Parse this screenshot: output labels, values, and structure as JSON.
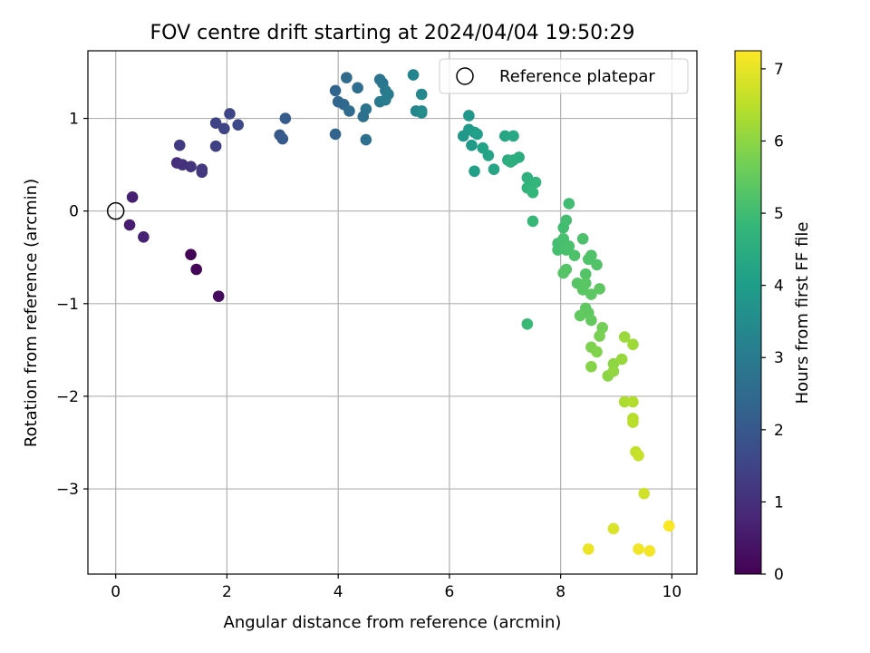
{
  "chart_data": {
    "type": "scatter",
    "title": "FOV centre drift starting at 2024/04/04 19:50:29",
    "xlabel": "Angular distance from reference (arcmin)",
    "ylabel": "Rotation from reference (arcmin)",
    "xlim": [
      -0.5,
      10.45
    ],
    "ylim": [
      -3.92,
      1.73
    ],
    "xticks": [
      0,
      2,
      4,
      6,
      8,
      10
    ],
    "xtick_labels": [
      "0",
      "2",
      "4",
      "6",
      "8",
      "10"
    ],
    "yticks": [
      -3,
      -2,
      -1,
      0,
      1
    ],
    "ytick_labels": [
      "−3",
      "−2",
      "−1",
      "0",
      "1"
    ],
    "grid": true,
    "legend": {
      "placement": "top-right",
      "label": "Reference platepar",
      "marker": "open-circle"
    },
    "reference_point": {
      "x": 0,
      "y": 0
    },
    "colorbar": {
      "label": "Hours from first FF file",
      "colormap": "viridis",
      "range": [
        0,
        7.25
      ],
      "ticks": [
        0,
        1,
        2,
        3,
        4,
        5,
        6,
        7
      ],
      "tick_labels": [
        "0",
        "1",
        "2",
        "3",
        "4",
        "5",
        "6",
        "7"
      ]
    },
    "colormap_stops": [
      "#440154",
      "#482878",
      "#3e4989",
      "#31688e",
      "#26828e",
      "#1f9e89",
      "#35b779",
      "#6ece58",
      "#b5de2b",
      "#fde725"
    ],
    "points": [
      {
        "x": 1.35,
        "y": -0.47,
        "t": 0.05
      },
      {
        "x": 1.45,
        "y": -0.63,
        "t": 0.1
      },
      {
        "x": 1.85,
        "y": -0.92,
        "t": 0.2
      },
      {
        "x": 0.25,
        "y": -0.15,
        "t": 0.6
      },
      {
        "x": 0.3,
        "y": 0.15,
        "t": 0.65
      },
      {
        "x": 0.5,
        "y": -0.28,
        "t": 0.7
      },
      {
        "x": 1.1,
        "y": 0.52,
        "t": 1.0
      },
      {
        "x": 1.2,
        "y": 0.5,
        "t": 1.05
      },
      {
        "x": 1.35,
        "y": 0.48,
        "t": 1.1
      },
      {
        "x": 1.55,
        "y": 0.45,
        "t": 1.15
      },
      {
        "x": 1.55,
        "y": 0.42,
        "t": 1.2
      },
      {
        "x": 1.15,
        "y": 0.71,
        "t": 1.25
      },
      {
        "x": 1.8,
        "y": 0.7,
        "t": 1.4
      },
      {
        "x": 1.8,
        "y": 0.95,
        "t": 1.45
      },
      {
        "x": 1.95,
        "y": 0.89,
        "t": 1.5
      },
      {
        "x": 2.05,
        "y": 1.05,
        "t": 1.55
      },
      {
        "x": 2.2,
        "y": 0.93,
        "t": 1.6
      },
      {
        "x": 2.95,
        "y": 0.82,
        "t": 2.0
      },
      {
        "x": 3.0,
        "y": 0.78,
        "t": 2.05
      },
      {
        "x": 3.05,
        "y": 1.0,
        "t": 2.1
      },
      {
        "x": 3.95,
        "y": 0.83,
        "t": 2.3
      },
      {
        "x": 3.95,
        "y": 1.3,
        "t": 2.35
      },
      {
        "x": 4.0,
        "y": 1.18,
        "t": 2.4
      },
      {
        "x": 4.1,
        "y": 1.15,
        "t": 2.45
      },
      {
        "x": 4.15,
        "y": 1.44,
        "t": 2.5
      },
      {
        "x": 4.2,
        "y": 1.08,
        "t": 2.55
      },
      {
        "x": 4.35,
        "y": 1.33,
        "t": 2.6
      },
      {
        "x": 4.45,
        "y": 1.02,
        "t": 2.65
      },
      {
        "x": 4.5,
        "y": 0.77,
        "t": 2.7
      },
      {
        "x": 4.5,
        "y": 1.1,
        "t": 2.75
      },
      {
        "x": 4.75,
        "y": 1.42,
        "t": 2.8
      },
      {
        "x": 4.8,
        "y": 1.38,
        "t": 2.85
      },
      {
        "x": 4.85,
        "y": 1.3,
        "t": 2.9
      },
      {
        "x": 4.75,
        "y": 1.18,
        "t": 2.95
      },
      {
        "x": 4.9,
        "y": 1.26,
        "t": 3.0
      },
      {
        "x": 4.85,
        "y": 1.2,
        "t": 3.05
      },
      {
        "x": 5.35,
        "y": 1.47,
        "t": 3.3
      },
      {
        "x": 5.4,
        "y": 1.08,
        "t": 3.35
      },
      {
        "x": 5.5,
        "y": 1.26,
        "t": 3.4
      },
      {
        "x": 5.5,
        "y": 1.08,
        "t": 3.45
      },
      {
        "x": 5.5,
        "y": 1.06,
        "t": 3.5
      },
      {
        "x": 6.35,
        "y": 1.03,
        "t": 3.8
      },
      {
        "x": 6.25,
        "y": 0.81,
        "t": 3.85
      },
      {
        "x": 6.35,
        "y": 0.88,
        "t": 3.9
      },
      {
        "x": 6.4,
        "y": 0.71,
        "t": 3.95
      },
      {
        "x": 6.45,
        "y": 0.85,
        "t": 4.0
      },
      {
        "x": 6.5,
        "y": 0.83,
        "t": 4.05
      },
      {
        "x": 6.45,
        "y": 0.43,
        "t": 4.1
      },
      {
        "x": 6.6,
        "y": 0.68,
        "t": 4.15
      },
      {
        "x": 6.7,
        "y": 0.6,
        "t": 4.2
      },
      {
        "x": 6.8,
        "y": 0.45,
        "t": 4.25
      },
      {
        "x": 7.0,
        "y": 0.81,
        "t": 4.3
      },
      {
        "x": 7.15,
        "y": 0.81,
        "t": 4.35
      },
      {
        "x": 7.05,
        "y": 0.55,
        "t": 4.4
      },
      {
        "x": 7.15,
        "y": 0.55,
        "t": 4.45
      },
      {
        "x": 7.25,
        "y": 0.58,
        "t": 4.5
      },
      {
        "x": 7.1,
        "y": 0.53,
        "t": 4.55
      },
      {
        "x": 7.4,
        "y": 0.36,
        "t": 4.6
      },
      {
        "x": 7.45,
        "y": 0.31,
        "t": 4.65
      },
      {
        "x": 7.4,
        "y": 0.25,
        "t": 4.7
      },
      {
        "x": 7.55,
        "y": 0.31,
        "t": 4.75
      },
      {
        "x": 7.5,
        "y": 0.2,
        "t": 4.8
      },
      {
        "x": 7.5,
        "y": -0.11,
        "t": 4.85
      },
      {
        "x": 7.4,
        "y": -1.22,
        "t": 4.9
      },
      {
        "x": 8.15,
        "y": 0.08,
        "t": 5.0
      },
      {
        "x": 8.05,
        "y": -0.18,
        "t": 5.02
      },
      {
        "x": 8.1,
        "y": -0.1,
        "t": 5.04
      },
      {
        "x": 7.95,
        "y": -0.35,
        "t": 5.06
      },
      {
        "x": 7.95,
        "y": -0.42,
        "t": 5.08
      },
      {
        "x": 8.05,
        "y": -0.3,
        "t": 5.1
      },
      {
        "x": 8.1,
        "y": -0.42,
        "t": 5.12
      },
      {
        "x": 8.15,
        "y": -0.38,
        "t": 5.14
      },
      {
        "x": 8.4,
        "y": -0.3,
        "t": 5.16
      },
      {
        "x": 8.25,
        "y": -0.48,
        "t": 5.18
      },
      {
        "x": 8.55,
        "y": -0.48,
        "t": 5.2
      },
      {
        "x": 8.5,
        "y": -0.52,
        "t": 5.22
      },
      {
        "x": 8.65,
        "y": -0.58,
        "t": 5.24
      },
      {
        "x": 8.45,
        "y": -0.68,
        "t": 5.26
      },
      {
        "x": 8.1,
        "y": -0.63,
        "t": 5.28
      },
      {
        "x": 8.05,
        "y": -0.67,
        "t": 5.3
      },
      {
        "x": 8.3,
        "y": -0.78,
        "t": 5.32
      },
      {
        "x": 8.45,
        "y": -0.78,
        "t": 5.34
      },
      {
        "x": 8.4,
        "y": -0.85,
        "t": 5.36
      },
      {
        "x": 8.55,
        "y": -0.9,
        "t": 5.38
      },
      {
        "x": 8.7,
        "y": -0.84,
        "t": 5.4
      },
      {
        "x": 8.45,
        "y": -1.05,
        "t": 5.42
      },
      {
        "x": 8.5,
        "y": -1.1,
        "t": 5.44
      },
      {
        "x": 8.35,
        "y": -1.13,
        "t": 5.46
      },
      {
        "x": 8.55,
        "y": -1.18,
        "t": 5.48
      },
      {
        "x": 8.75,
        "y": -1.26,
        "t": 5.7
      },
      {
        "x": 8.7,
        "y": -1.35,
        "t": 5.75
      },
      {
        "x": 8.55,
        "y": -1.47,
        "t": 5.8
      },
      {
        "x": 8.65,
        "y": -1.52,
        "t": 5.85
      },
      {
        "x": 8.55,
        "y": -1.68,
        "t": 5.9
      },
      {
        "x": 8.85,
        "y": -1.78,
        "t": 5.95
      },
      {
        "x": 8.95,
        "y": -1.65,
        "t": 6.0
      },
      {
        "x": 8.95,
        "y": -1.73,
        "t": 6.05
      },
      {
        "x": 9.1,
        "y": -1.6,
        "t": 6.1
      },
      {
        "x": 9.15,
        "y": -1.36,
        "t": 6.15
      },
      {
        "x": 9.3,
        "y": -1.44,
        "t": 6.2
      },
      {
        "x": 9.15,
        "y": -2.06,
        "t": 6.35
      },
      {
        "x": 9.3,
        "y": -2.06,
        "t": 6.4
      },
      {
        "x": 9.3,
        "y": -2.24,
        "t": 6.45
      },
      {
        "x": 9.3,
        "y": -2.28,
        "t": 6.5
      },
      {
        "x": 9.35,
        "y": -2.6,
        "t": 6.6
      },
      {
        "x": 9.4,
        "y": -2.64,
        "t": 6.65
      },
      {
        "x": 9.5,
        "y": -3.05,
        "t": 6.75
      },
      {
        "x": 8.95,
        "y": -3.43,
        "t": 6.85
      },
      {
        "x": 8.5,
        "y": -3.65,
        "t": 7.05
      },
      {
        "x": 9.4,
        "y": -3.65,
        "t": 7.1
      },
      {
        "x": 9.6,
        "y": -3.67,
        "t": 7.15
      },
      {
        "x": 9.95,
        "y": -3.4,
        "t": 7.2
      }
    ]
  }
}
